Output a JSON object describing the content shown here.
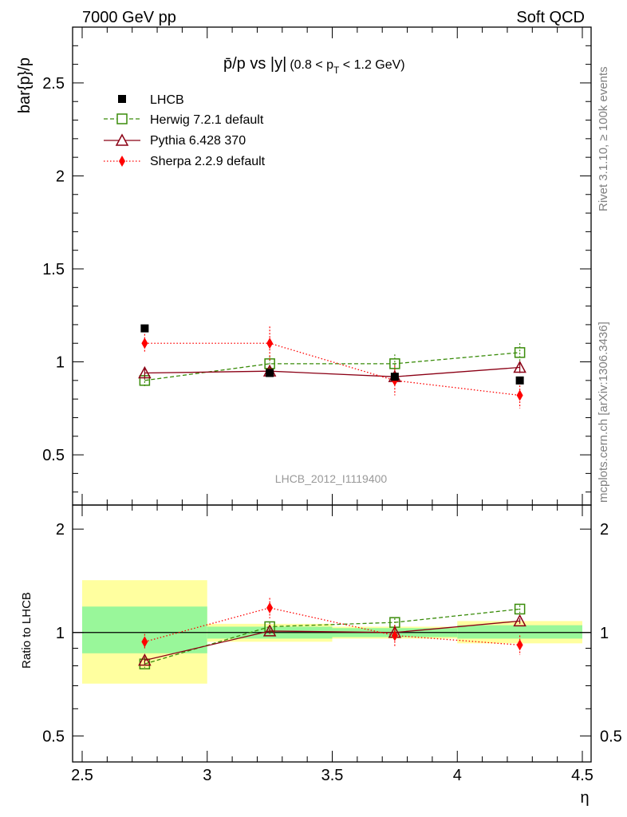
{
  "header": {
    "left": "7000 GeV pp",
    "right": "Soft QCD"
  },
  "side_labels": {
    "rivet": "Rivet 3.1.10, ≥ 100k events",
    "mcplots": "mcplots.cern.ch [arXiv:1306.3436]"
  },
  "colors": {
    "data": "#000000",
    "herwig": "#3a8c0a",
    "pythia": "#8b0015",
    "sherpa": "#ff0000",
    "band_yellow": "#ffff9f",
    "band_green": "#99f79a"
  },
  "chart_data": [
    {
      "type": "line",
      "title_main": "p̄/p vs |y|",
      "title_sub": "(0.8 < p",
      "title_sub_index": "T",
      "title_sub_end": " < 1.2 GeV)",
      "ylabel": "bar{p}/p",
      "xlim": [
        2.5,
        4.5
      ],
      "ylim": [
        0.23,
        2.8
      ],
      "yticks": [
        "0.5",
        "1",
        "1.5",
        "2",
        "2.5"
      ],
      "ytick_values": [
        0.5,
        1,
        1.5,
        2,
        2.5
      ],
      "watermark": "LHCB_2012_I1119400",
      "legend": [
        "LHCB",
        "Herwig 7.2.1 default",
        "Pythia 6.428 370",
        "Sherpa 2.2.9 default"
      ],
      "x": [
        2.75,
        3.25,
        3.75,
        4.25
      ],
      "series": [
        {
          "name": "LHCB",
          "values": [
            1.18,
            0.94,
            0.92,
            0.9
          ],
          "errors": [
            0.02,
            0.02,
            0.02,
            0.02
          ]
        },
        {
          "name": "Herwig 7.2.1 default",
          "values": [
            0.9,
            0.99,
            0.99,
            1.05
          ],
          "errors": [
            0.03,
            0.04,
            0.05,
            0.05
          ]
        },
        {
          "name": "Pythia 6.428 370",
          "values": [
            0.94,
            0.95,
            0.92,
            0.97
          ],
          "errors": [
            0.03,
            0.02,
            0.02,
            0.03
          ]
        },
        {
          "name": "Sherpa 2.2.9 default",
          "values": [
            1.1,
            1.1,
            0.9,
            0.82
          ],
          "errors": [
            0.05,
            0.09,
            0.08,
            0.07
          ]
        }
      ]
    },
    {
      "type": "line",
      "ylabel": "Ratio to LHCB",
      "xlabel": "η",
      "xlim": [
        2.5,
        4.5
      ],
      "ylim": [
        0.42,
        2.35
      ],
      "yticks": [
        "0.5",
        "1",
        "2"
      ],
      "ytick_values": [
        0.5,
        1,
        2
      ],
      "xticks": [
        "2.5",
        "3",
        "3.5",
        "4",
        "4.5"
      ],
      "xtick_values": [
        2.5,
        3,
        3.5,
        4,
        4.5
      ],
      "bands": [
        {
          "x": [
            2.5,
            3.0
          ],
          "yellow": [
            0.71,
            1.42
          ],
          "green": [
            0.87,
            1.19
          ]
        },
        {
          "x": [
            3.0,
            3.5
          ],
          "yellow": [
            0.94,
            1.06
          ],
          "green": [
            0.96,
            1.04
          ]
        },
        {
          "x": [
            3.5,
            4.0
          ],
          "yellow": [
            0.96,
            1.04
          ],
          "green": [
            0.97,
            1.03
          ]
        },
        {
          "x": [
            4.0,
            4.5
          ],
          "yellow": [
            0.93,
            1.08
          ],
          "green": [
            0.96,
            1.05
          ]
        }
      ],
      "x": [
        2.75,
        3.25,
        3.75,
        4.25
      ],
      "series": [
        {
          "name": "Herwig 7.2.1 default",
          "values": [
            0.81,
            1.04,
            1.07,
            1.17
          ],
          "errors": [
            0.02,
            0.03,
            0.03,
            0.03
          ]
        },
        {
          "name": "Pythia 6.428 370",
          "values": [
            0.83,
            1.01,
            1.0,
            1.08
          ],
          "errors": [
            0.02,
            0.02,
            0.02,
            0.02
          ]
        },
        {
          "name": "Sherpa 2.2.9 default",
          "values": [
            0.94,
            1.18,
            0.98,
            0.92
          ],
          "errors": [
            0.05,
            0.08,
            0.07,
            0.06
          ]
        }
      ]
    }
  ]
}
